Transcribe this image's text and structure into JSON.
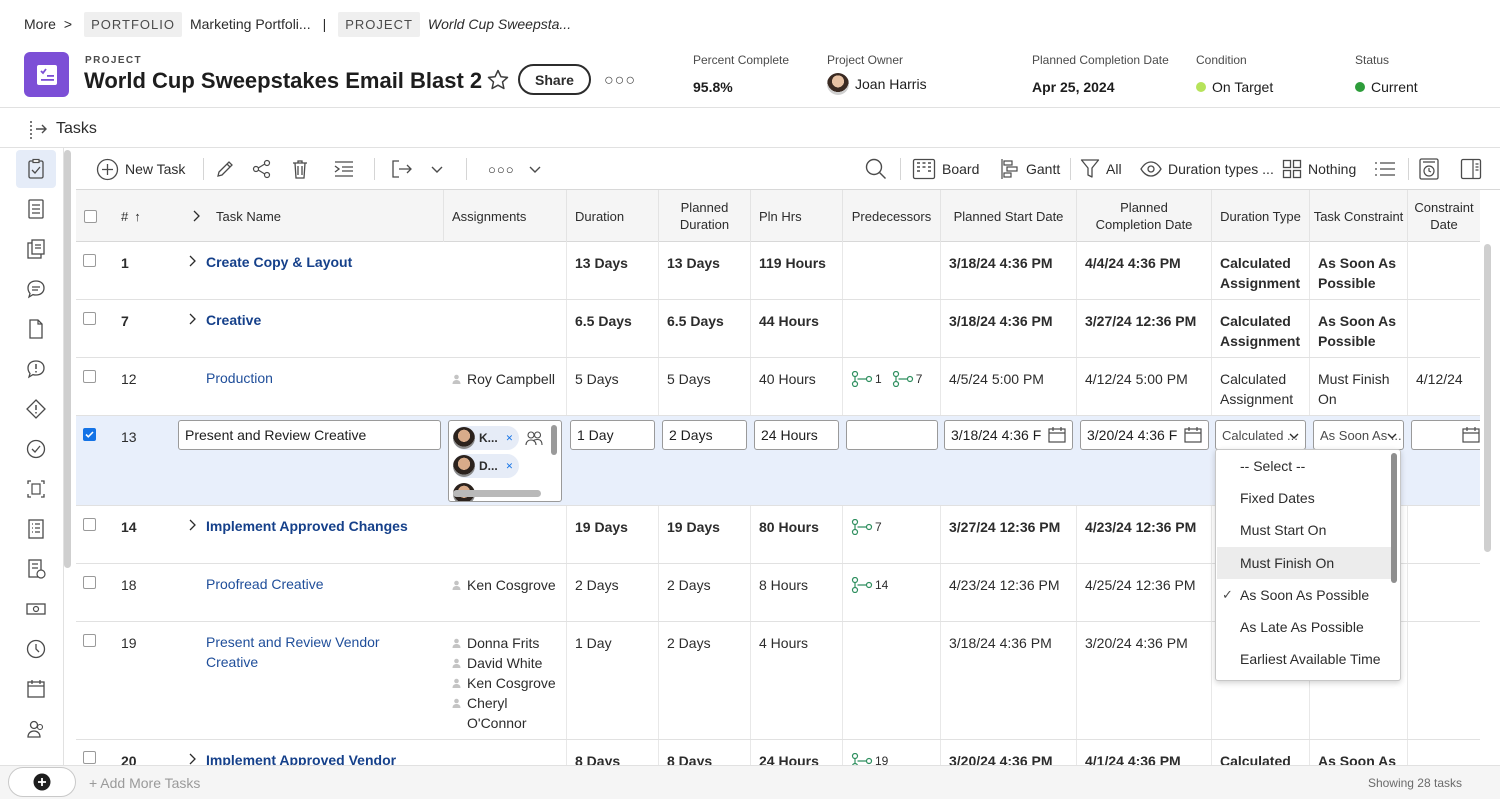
{
  "breadcrumb": {
    "more": "More",
    "sep1": ">",
    "portfolio_tag": "PORTFOLIO",
    "portfolio_name": "Marketing Portfoli...",
    "sep2": "|",
    "project_tag": "PROJECT",
    "project_name": "World Cup Sweepsta..."
  },
  "header": {
    "label": "PROJECT",
    "title": "World Cup Sweepstakes Email Blast 2",
    "share": "Share",
    "percent_complete_label": "Percent Complete",
    "percent_complete_value": "95.8%",
    "owner_label": "Project Owner",
    "owner_value": "Joan Harris",
    "planned_completion_label": "Planned Completion Date",
    "planned_completion_value": "Apr 25, 2024",
    "condition_label": "Condition",
    "condition_value": "On Target",
    "condition_color": "#b6e35a",
    "status_label": "Status",
    "status_value": "Current",
    "status_color": "#2d9d3a"
  },
  "tasks_bar": {
    "title": "Tasks"
  },
  "toolbar": {
    "new_task": "New Task",
    "board": "Board",
    "gantt": "Gantt",
    "filter": "All",
    "duration_types": "Duration types ...",
    "grouping": "Nothing"
  },
  "columns": {
    "num": "#",
    "task_name": "Task Name",
    "assignments": "Assignments",
    "duration": "Duration",
    "planned_duration": "Planned Duration",
    "pln_hrs": "Pln Hrs",
    "predecessors": "Predecessors",
    "planned_start": "Planned Start Date",
    "planned_completion": "Planned Completion Date",
    "duration_type": "Duration Type",
    "task_constraint": "Task Constraint",
    "constraint_date": "Constraint Date"
  },
  "rows": [
    {
      "num": "1",
      "name": "Create Copy & Layout",
      "duration": "13 Days",
      "planned_duration": "13 Days",
      "pln_hrs": "119 Hours",
      "start": "3/18/24 4:36 PM",
      "completion": "4/4/24 4:36 PM",
      "duration_type": "Calculated Assignment",
      "constraint": "As Soon As Possible",
      "constraint_date": ""
    },
    {
      "num": "7",
      "name": "Creative",
      "duration": "6.5 Days",
      "planned_duration": "6.5 Days",
      "pln_hrs": "44 Hours",
      "start": "3/18/24 4:36 PM",
      "completion": "3/27/24 12:36 PM",
      "duration_type": "Calculated Assignment",
      "constraint": "As Soon As Possible",
      "constraint_date": ""
    },
    {
      "num": "12",
      "name": "Production",
      "assignee": "Roy Campbell",
      "duration": "5 Days",
      "planned_duration": "5 Days",
      "pln_hrs": "40 Hours",
      "pred1": "1",
      "pred2": "7",
      "start": "4/5/24 5:00 PM",
      "completion": "4/12/24 5:00 PM",
      "duration_type": "Calculated Assignment",
      "constraint": "Must Finish On",
      "constraint_date": "4/12/24"
    },
    {
      "num": "13",
      "name": "Present and Review Creative",
      "chip1": "K...",
      "chip2": "D...",
      "duration": "1 Day",
      "planned_duration": "2 Days",
      "pln_hrs": "24 Hours",
      "start": "3/18/24 4:36 F",
      "completion": "3/20/24 4:36 F",
      "duration_type": "Calculated ...",
      "constraint": "As Soon As ..."
    },
    {
      "num": "14",
      "name": "Implement Approved Changes",
      "duration": "19 Days",
      "planned_duration": "19 Days",
      "pln_hrs": "80 Hours",
      "pred1": "7",
      "start": "3/27/24 12:36 PM",
      "completion": "4/23/24 12:36 PM"
    },
    {
      "num": "18",
      "name": "Proofread Creative",
      "assignee": "Ken Cosgrove",
      "duration": "2 Days",
      "planned_duration": "2 Days",
      "pln_hrs": "8 Hours",
      "pred1": "14",
      "start": "4/23/24 12:36 PM",
      "completion": "4/25/24 12:36 PM"
    },
    {
      "num": "19",
      "name": "Present and Review Vendor Creative",
      "assignees": [
        "Donna Frits",
        "David White",
        "Ken Cosgrove",
        "Cheryl O'Connor"
      ],
      "duration": "1 Day",
      "planned_duration": "2 Days",
      "pln_hrs": "4 Hours",
      "start": "3/18/24 4:36 PM",
      "completion": "3/20/24 4:36 PM"
    },
    {
      "num": "20",
      "name": "Implement Approved Vendor",
      "duration": "8 Days",
      "planned_duration": "8 Days",
      "pln_hrs": "24 Hours",
      "pred1": "19",
      "start": "3/20/24 4:36 PM",
      "completion": "4/1/24 4:36 PM",
      "duration_type": "Calculated",
      "constraint": "As Soon As"
    }
  ],
  "dropdown": {
    "options": [
      "-- Select --",
      "Fixed Dates",
      "Must Start On",
      "Must Finish On",
      "As Soon As Possible",
      "As Late As Possible",
      "Earliest Available Time"
    ],
    "checkmark": "✓"
  },
  "footer": {
    "add_more": "+ Add More Tasks",
    "showing": "Showing 28 tasks"
  }
}
